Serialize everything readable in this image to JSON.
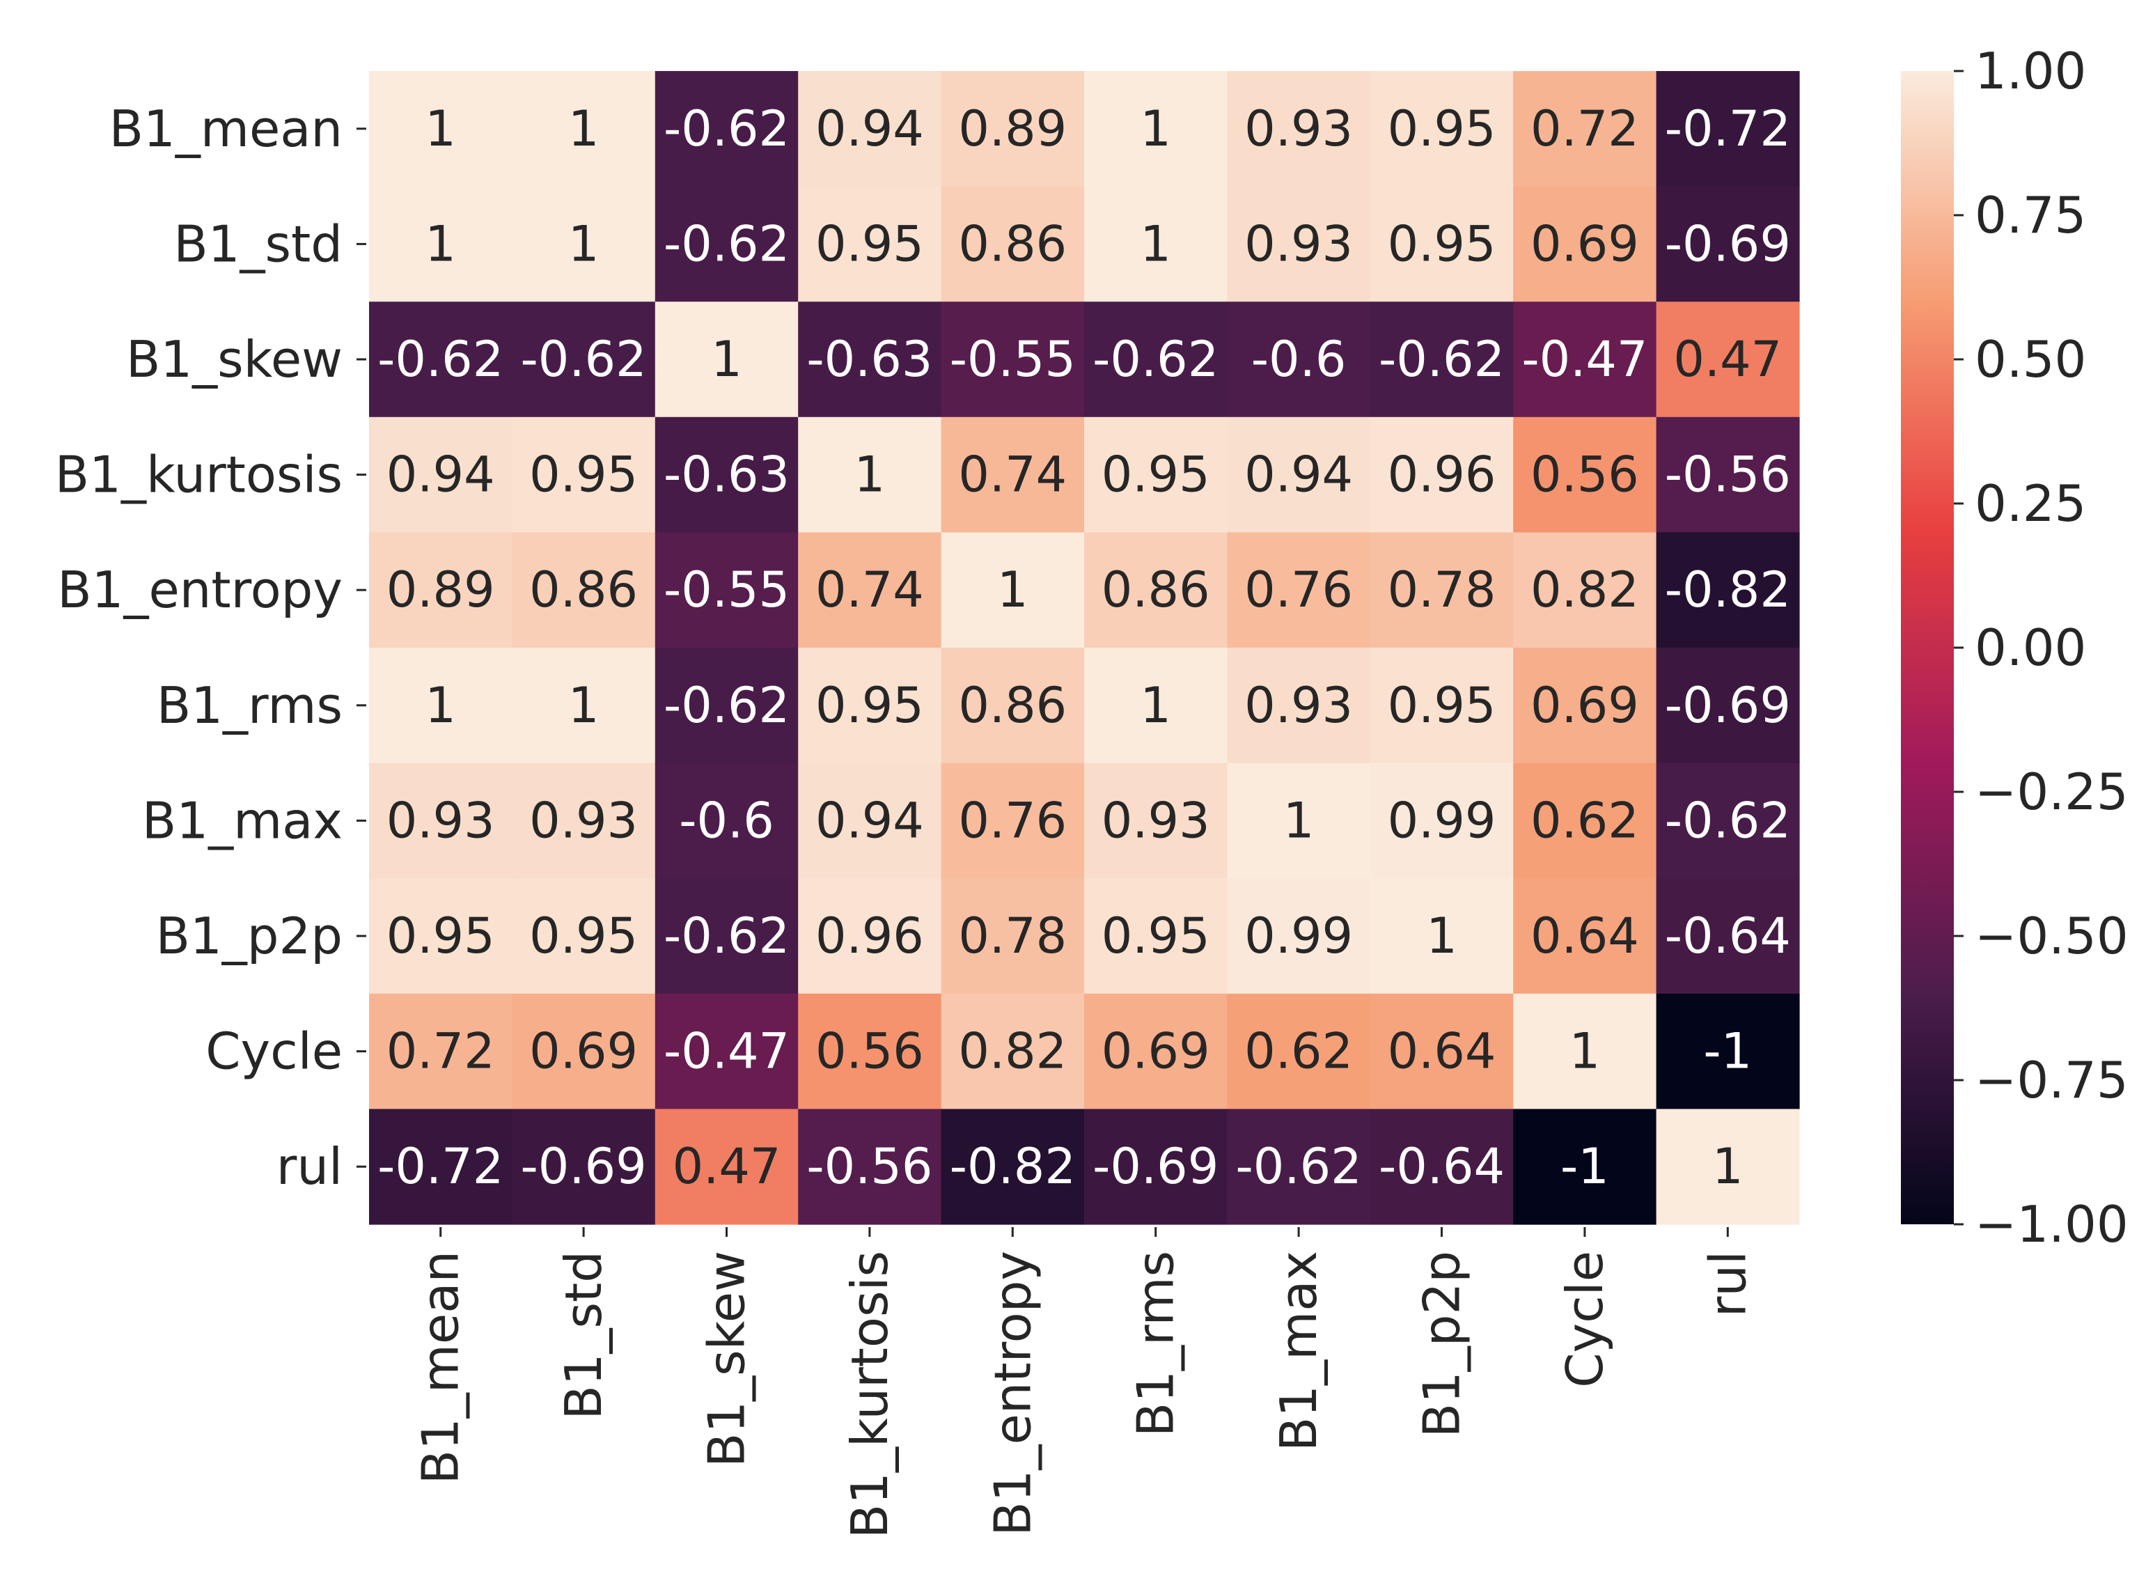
{
  "chart_data": {
    "type": "heatmap",
    "title": "",
    "xlabel": "",
    "ylabel": "",
    "labels": [
      "B1_mean",
      "B1_std",
      "B1_skew",
      "B1_kurtosis",
      "B1_entropy",
      "B1_rms",
      "B1_max",
      "B1_p2p",
      "Cycle",
      "rul"
    ],
    "values": [
      [
        1,
        1,
        -0.62,
        0.94,
        0.89,
        1,
        0.93,
        0.95,
        0.72,
        -0.72
      ],
      [
        1,
        1,
        -0.62,
        0.95,
        0.86,
        1,
        0.93,
        0.95,
        0.69,
        -0.69
      ],
      [
        -0.62,
        -0.62,
        1,
        -0.63,
        -0.55,
        -0.62,
        -0.6,
        -0.62,
        -0.47,
        0.47
      ],
      [
        0.94,
        0.95,
        -0.63,
        1,
        0.74,
        0.95,
        0.94,
        0.96,
        0.56,
        -0.56
      ],
      [
        0.89,
        0.86,
        -0.55,
        0.74,
        1,
        0.86,
        0.76,
        0.78,
        0.82,
        -0.82
      ],
      [
        1,
        1,
        -0.62,
        0.95,
        0.86,
        1,
        0.93,
        0.95,
        0.69,
        -0.69
      ],
      [
        0.93,
        0.93,
        -0.6,
        0.94,
        0.76,
        0.93,
        1,
        0.99,
        0.62,
        -0.62
      ],
      [
        0.95,
        0.95,
        -0.62,
        0.96,
        0.78,
        0.95,
        0.99,
        1,
        0.64,
        -0.64
      ],
      [
        0.72,
        0.69,
        -0.47,
        0.56,
        0.82,
        0.69,
        0.62,
        0.64,
        1,
        -1
      ],
      [
        -0.72,
        -0.69,
        0.47,
        -0.56,
        -0.82,
        -0.69,
        -0.62,
        -0.64,
        -1,
        1
      ]
    ],
    "annotations": [
      [
        "1",
        "1",
        "-0.62",
        "0.94",
        "0.89",
        "1",
        "0.93",
        "0.95",
        "0.72",
        "-0.72"
      ],
      [
        "1",
        "1",
        "-0.62",
        "0.95",
        "0.86",
        "1",
        "0.93",
        "0.95",
        "0.69",
        "-0.69"
      ],
      [
        "-0.62",
        "-0.62",
        "1",
        "-0.63",
        "-0.55",
        "-0.62",
        "-0.6",
        "-0.62",
        "-0.47",
        "0.47"
      ],
      [
        "0.94",
        "0.95",
        "-0.63",
        "1",
        "0.74",
        "0.95",
        "0.94",
        "0.96",
        "0.56",
        "-0.56"
      ],
      [
        "0.89",
        "0.86",
        "-0.55",
        "0.74",
        "1",
        "0.86",
        "0.76",
        "0.78",
        "0.82",
        "-0.82"
      ],
      [
        "1",
        "1",
        "-0.62",
        "0.95",
        "0.86",
        "1",
        "0.93",
        "0.95",
        "0.69",
        "-0.69"
      ],
      [
        "0.93",
        "0.93",
        "-0.6",
        "0.94",
        "0.76",
        "0.93",
        "1",
        "0.99",
        "0.62",
        "-0.62"
      ],
      [
        "0.95",
        "0.95",
        "-0.62",
        "0.96",
        "0.78",
        "0.95",
        "0.99",
        "1",
        "0.64",
        "-0.64"
      ],
      [
        "0.72",
        "0.69",
        "-0.47",
        "0.56",
        "0.82",
        "0.69",
        "0.62",
        "0.64",
        "1",
        "-1"
      ],
      [
        "-0.72",
        "-0.69",
        "0.47",
        "-0.56",
        "-0.82",
        "-0.69",
        "-0.62",
        "-0.64",
        "-1",
        "1"
      ]
    ],
    "colorbar": {
      "range": [
        -1,
        1
      ],
      "ticks": [
        1,
        0.75,
        0.5,
        0.25,
        0,
        -0.25,
        -0.5,
        -0.75,
        -1
      ],
      "tick_labels": [
        "1.00",
        "0.75",
        "0.50",
        "0.25",
        "0.00",
        "−0.25",
        "−0.50",
        "−0.75",
        "−1.00"
      ],
      "colormap": "rocket",
      "stops": [
        "#03051a",
        "#4c1d4b",
        "#a11a5b",
        "#e83f3f",
        "#f69c73",
        "#faebdd"
      ]
    }
  }
}
